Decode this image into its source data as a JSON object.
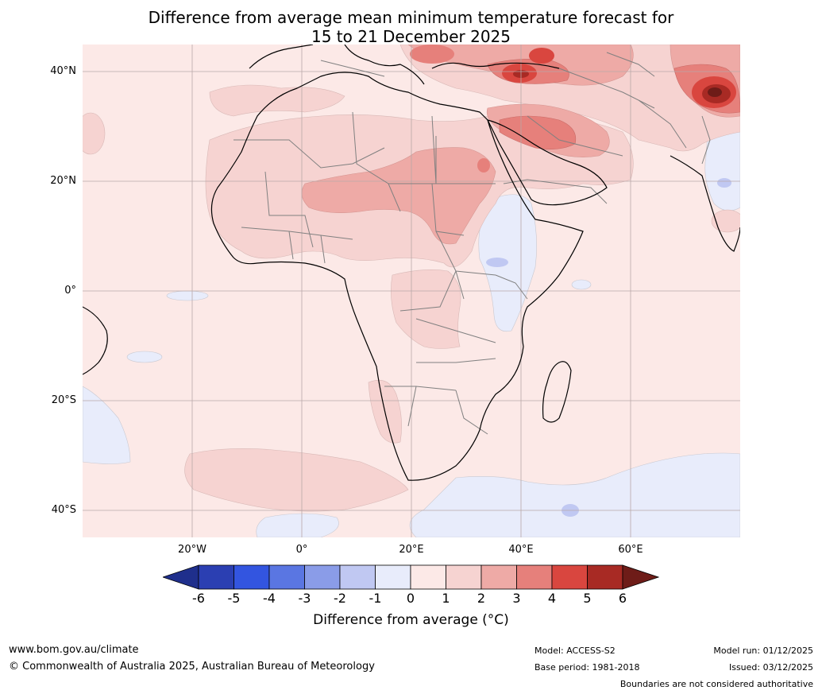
{
  "title_line1": "Difference from average mean minimum temperature forecast for",
  "title_line2": "15 to 21 December 2025",
  "lat_labels": [
    "40°N",
    "20°N",
    "0°",
    "20°S",
    "40°S"
  ],
  "lon_labels": [
    "20°W",
    "0°",
    "20°E",
    "40°E",
    "60°E"
  ],
  "colorbar": {
    "ticks": [
      "-6",
      "-5",
      "-4",
      "-3",
      "-2",
      "-1",
      "0",
      "1",
      "2",
      "3",
      "4",
      "5",
      "6"
    ],
    "colors": [
      "#1f2f8c",
      "#2b3fb2",
      "#3355e0",
      "#5a76e2",
      "#8a9ce8",
      "#c0c8f2",
      "#e8ecfb",
      "#fce9e7",
      "#f6d3d1",
      "#eeaaa6",
      "#e6807b",
      "#d9463f",
      "#a82a24",
      "#6e1c18"
    ],
    "label": "Difference from average (°C)"
  },
  "footer": {
    "website": "www.bom.gov.au/climate",
    "copyright": "© Commonwealth of Australia 2025, Australian Bureau of Meteorology",
    "model": "Model: ACCESS-S2",
    "base_period": "Base period: 1981-2018",
    "model_run": "Model run: 01/12/2025",
    "issued": "Issued: 03/12/2025",
    "disclaimer": "Boundaries are not considered authoritative"
  }
}
